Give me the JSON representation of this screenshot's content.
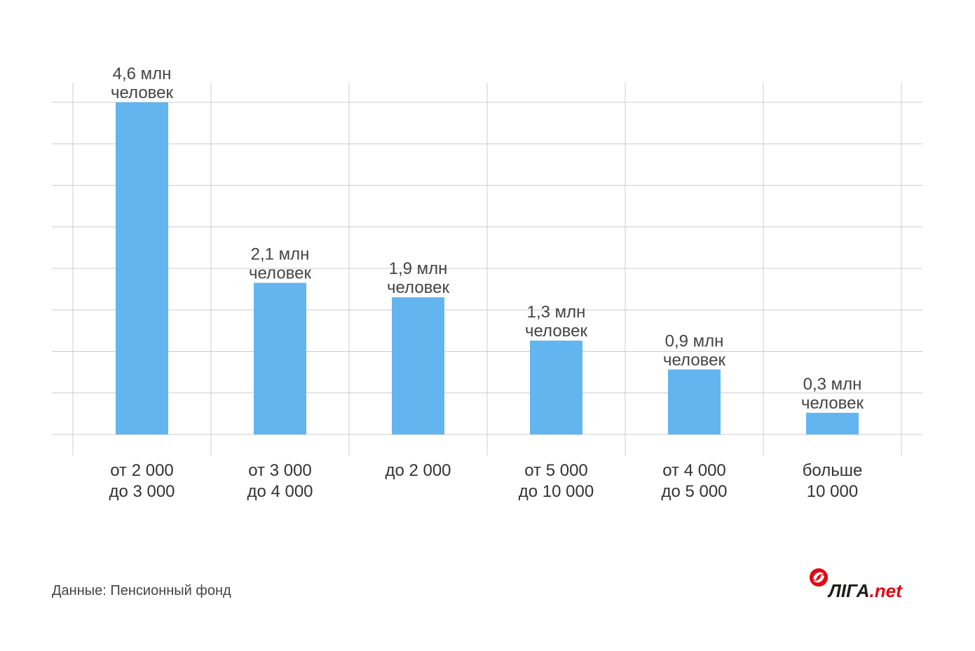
{
  "chart_data": {
    "type": "bar",
    "categories": [
      [
        "от 2 000",
        "до 3 000"
      ],
      [
        "от 3 000",
        "до 4 000"
      ],
      [
        "до 2 000"
      ],
      [
        "от 5 000",
        "до 10 000"
      ],
      [
        "от 4 000",
        "до 5 000"
      ],
      [
        "больше",
        "10 000"
      ]
    ],
    "values": [
      4.6,
      2.1,
      1.9,
      1.3,
      0.9,
      0.3
    ],
    "bar_labels": [
      [
        "4,6 млн",
        "человек"
      ],
      [
        "2,1 млн",
        "человек"
      ],
      [
        "1,9 млн",
        "человек"
      ],
      [
        "1,3 млн",
        "человек"
      ],
      [
        "0,9 млн",
        "человек"
      ],
      [
        "0,3 млн",
        "человек"
      ]
    ],
    "ylim": [
      0,
      4.6
    ],
    "grid": true,
    "bar_color": "#62b5ee",
    "grid_color": "#cccccc"
  },
  "source_text": "Данные: Пенсионный фонд",
  "logo": {
    "text_main": "ЛIГА",
    "text_suffix": ".net",
    "icon": "liga-logo-icon",
    "color_main": "#1d1d1b",
    "color_accent": "#e30613"
  }
}
